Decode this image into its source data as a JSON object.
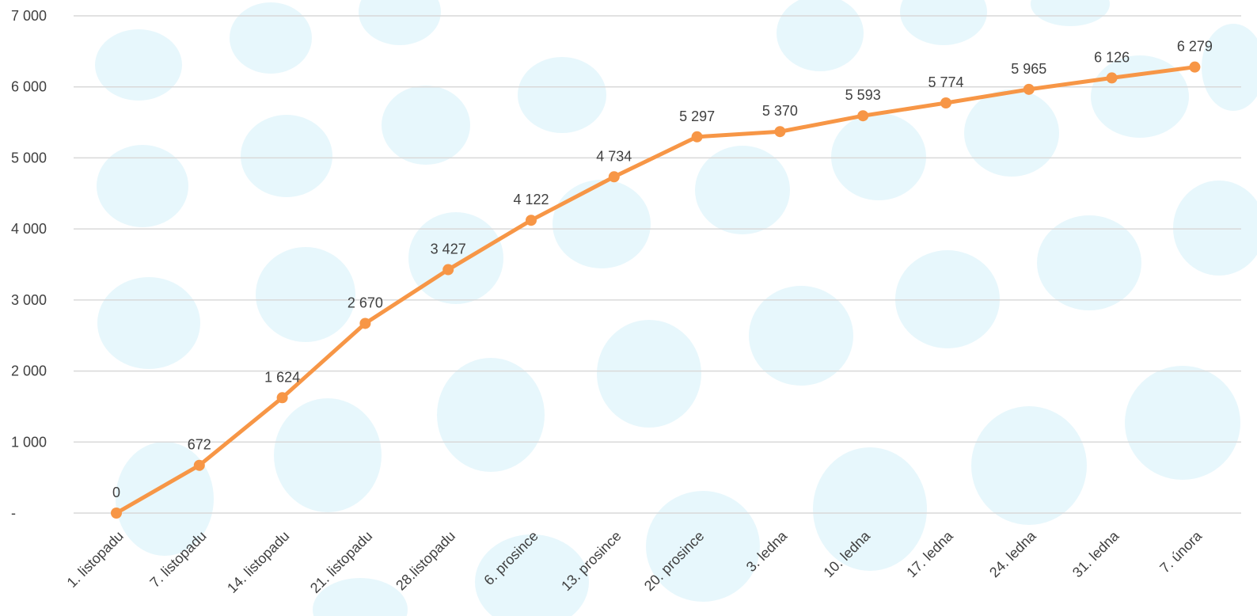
{
  "chart_data": {
    "type": "line",
    "title": "",
    "xlabel": "",
    "ylabel": "",
    "categories": [
      "1. listopadu",
      "7. listopadu",
      "14. listopadu",
      "21. listopadu",
      "28.listopadu",
      "6. prosince",
      "13. prosince",
      "20. prosince",
      "3. ledna",
      "10. ledna",
      "17. ledna",
      "24. ledna",
      "31. ledna",
      "7. února"
    ],
    "series": [
      {
        "values": [
          0,
          672,
          1624,
          2670,
          3427,
          4122,
          4734,
          5297,
          5370,
          5593,
          5774,
          5965,
          6126,
          6279
        ],
        "color": "#f79646"
      }
    ],
    "value_labels": [
      "0",
      "672",
      "1 624",
      "2 670",
      "3 427",
      "4 122",
      "4 734",
      "5 297",
      "5 370",
      "5 593",
      "5 774",
      "5 965",
      "6 126",
      "6 279"
    ],
    "ylim": [
      0,
      7000
    ],
    "yticks": [
      0,
      1000,
      2000,
      3000,
      4000,
      5000,
      6000,
      7000
    ],
    "ytick_labels": [
      "-",
      "1 000",
      "2 000",
      "3 000",
      "4 000",
      "5 000",
      "6 000",
      "7 000"
    ],
    "grid": true,
    "legend": "none",
    "background_color": "#e3f6fb"
  }
}
